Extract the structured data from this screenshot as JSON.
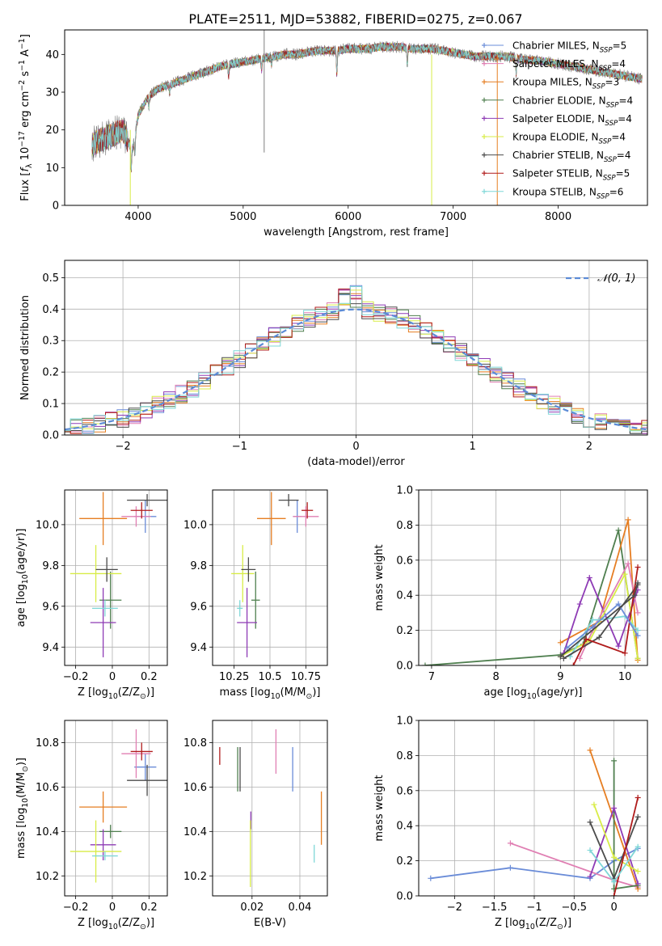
{
  "figure": {
    "title": "PLATE=2511, MJD=53882, FIBERID=0275, z=0.067",
    "colors": {
      "chabrier_miles": "#6a8cd8",
      "salpeter_miles": "#e07fb3",
      "kroupa_miles": "#e67e22",
      "chabrier_elodie": "#4f7f4f",
      "salpeter_elodie": "#8e3bb5",
      "kroupa_elodie": "#d8ec47",
      "chabrier_stelib": "#4b4b4b",
      "salpeter_stelib": "#b01c1c",
      "kroupa_stelib": "#7fd7d7",
      "data_grey": "#7f7f7f",
      "normal_curve": "#5b8bd6",
      "grid": "#b0b0b0"
    }
  },
  "chart_data": [
    {
      "id": "spectrum",
      "type": "line",
      "title": "PLATE=2511, MJD=53882, FIBERID=0275, z=0.067",
      "xlabel": "wavelength [Angstrom, rest frame]",
      "ylabel": "Flux [f_λ 10^-17 erg cm^-2 s^-1 A^-1]",
      "xlim": [
        3300,
        8850
      ],
      "ylim": [
        0,
        46.5
      ],
      "xticks": [
        4000,
        5000,
        6000,
        7000,
        8000
      ],
      "yticks": [
        0,
        10,
        20,
        30,
        40
      ],
      "grid": false,
      "legend_position": "right",
      "continuum": {
        "x": [
          3560,
          3620,
          3700,
          3780,
          3850,
          3900,
          3950,
          4000,
          4100,
          4200,
          4300,
          4400,
          4500,
          4600,
          4700,
          4800,
          4900,
          5000,
          5100,
          5200,
          5300,
          5400,
          5500,
          5600,
          5700,
          5800,
          5900,
          6000,
          6100,
          6200,
          6300,
          6400,
          6500,
          6600,
          6700,
          6800,
          6900,
          7000,
          7100,
          7200,
          7300,
          7400,
          7500,
          7600,
          7700,
          7800,
          7900,
          8000,
          8100,
          8200,
          8300,
          8400,
          8500,
          8600,
          8700,
          8800
        ],
        "y": [
          16,
          17,
          18,
          19,
          20,
          17,
          15,
          24,
          29,
          31,
          32,
          33,
          34,
          35,
          36,
          37,
          37.5,
          38,
          38.5,
          39,
          39.5,
          40,
          40,
          40.5,
          41,
          41,
          41,
          41.5,
          41.5,
          41.5,
          42,
          42,
          42,
          41.5,
          41.5,
          41.5,
          41,
          40.5,
          40,
          39.5,
          39.5,
          39.5,
          39.5,
          39,
          38.5,
          38.5,
          38,
          37.5,
          37,
          36.5,
          36,
          35.5,
          35,
          34.5,
          34,
          33.5
        ]
      },
      "series": [
        {
          "name": "Chabrier MILES, N_SSP=5",
          "marker": "plus"
        },
        {
          "name": "Salpeter MILES, N_SSP=4",
          "marker": "plus"
        },
        {
          "name": "Kroupa MILES, N_SSP=3",
          "marker": "plus"
        },
        {
          "name": "Chabrier ELODIE, N_SSP=4",
          "marker": "plus"
        },
        {
          "name": "Salpeter ELODIE, N_SSP=4",
          "marker": "plus"
        },
        {
          "name": "Kroupa ELODIE, N_SSP=4",
          "marker": "plus"
        },
        {
          "name": "Chabrier STELIB, N_SSP=4",
          "marker": "plus"
        },
        {
          "name": "Salpeter STELIB, N_SSP=5",
          "marker": "plus"
        },
        {
          "name": "Kroupa STELIB, N_SSP=6",
          "marker": "plus"
        }
      ]
    },
    {
      "id": "residuals",
      "type": "line",
      "xlabel": "(data-model)/error",
      "ylabel": "Normed distribution",
      "xlim": [
        -2.5,
        2.5
      ],
      "ylim": [
        0,
        0.555
      ],
      "xticks": [
        -2,
        -1,
        0,
        1,
        2
      ],
      "yticks": [
        0.0,
        0.1,
        0.2,
        0.3,
        0.4,
        0.5
      ],
      "grid": true,
      "legend_position": "top-right",
      "reference_curve": {
        "name": "𝒩(0, 1)",
        "mean": 0,
        "sigma": 1,
        "style": "dashed"
      },
      "bin_width": 0.1
    },
    {
      "id": "age_vs_Z",
      "type": "scatter",
      "xlabel": "Z [log10(Z/Z⊙)]",
      "ylabel": "age [log10(age/yr)]",
      "xlim": [
        -0.26,
        0.3
      ],
      "ylim": [
        9.31,
        10.17
      ],
      "xticks": [
        -0.2,
        0.0,
        0.2
      ],
      "yticks": [
        9.4,
        9.6,
        9.8,
        10.0
      ],
      "grid": true,
      "points": [
        {
          "series": 0,
          "x": 0.18,
          "y": 10.04,
          "xerr": 0.06,
          "yerr": 0.08
        },
        {
          "series": 1,
          "x": 0.13,
          "y": 10.04,
          "xerr": 0.08,
          "yerr": 0.05
        },
        {
          "series": 2,
          "x": -0.05,
          "y": 10.03,
          "xerr": 0.13,
          "yerr": 0.13
        },
        {
          "series": 3,
          "x": -0.01,
          "y": 9.63,
          "xerr": 0.06,
          "yerr": 0.14
        },
        {
          "series": 4,
          "x": -0.05,
          "y": 9.52,
          "xerr": 0.07,
          "yerr": 0.17
        },
        {
          "series": 5,
          "x": -0.09,
          "y": 9.76,
          "xerr": 0.14,
          "yerr": 0.14
        },
        {
          "series": 6,
          "x": 0.19,
          "y": 10.12,
          "xerr": 0.11,
          "yerr": 0.03
        },
        {
          "series": 7,
          "x": 0.16,
          "y": 10.07,
          "xerr": 0.06,
          "yerr": 0.04
        },
        {
          "series": 8,
          "x": -0.04,
          "y": 9.59,
          "xerr": 0.07,
          "yerr": 0.04
        },
        {
          "series": 6,
          "x": -0.03,
          "y": 9.78,
          "xerr": 0.06,
          "yerr": 0.06
        }
      ]
    },
    {
      "id": "age_vs_mass",
      "type": "scatter",
      "xlabel": "mass [log10(M/M⊙)]",
      "ylabel": "",
      "xlim": [
        10.1,
        10.9
      ],
      "ylim": [
        9.31,
        10.17
      ],
      "xticks": [
        10.25,
        10.5,
        10.75
      ],
      "yticks": [
        9.4,
        9.6,
        9.8,
        10.0
      ],
      "grid": true,
      "points": [
        {
          "series": 0,
          "x": 10.69,
          "y": 10.04,
          "xerr": 0.03,
          "yerr": 0.08
        },
        {
          "series": 1,
          "x": 10.75,
          "y": 10.04,
          "xerr": 0.09,
          "yerr": 0.05
        },
        {
          "series": 2,
          "x": 10.51,
          "y": 10.03,
          "xerr": 0.1,
          "yerr": 0.13
        },
        {
          "series": 3,
          "x": 10.4,
          "y": 9.63,
          "xerr": 0.03,
          "yerr": 0.14
        },
        {
          "series": 4,
          "x": 10.34,
          "y": 9.52,
          "xerr": 0.07,
          "yerr": 0.17
        },
        {
          "series": 5,
          "x": 10.31,
          "y": 9.76,
          "xerr": 0.08,
          "yerr": 0.14
        },
        {
          "series": 6,
          "x": 10.63,
          "y": 10.12,
          "xerr": 0.07,
          "yerr": 0.03
        },
        {
          "series": 7,
          "x": 10.76,
          "y": 10.07,
          "xerr": 0.04,
          "yerr": 0.04
        },
        {
          "series": 8,
          "x": 10.29,
          "y": 9.59,
          "xerr": 0.02,
          "yerr": 0.04
        },
        {
          "series": 6,
          "x": 10.35,
          "y": 9.78,
          "xerr": 0.05,
          "yerr": 0.06
        }
      ]
    },
    {
      "id": "weight_vs_age",
      "type": "line",
      "xlabel": "age [log10(age/yr)]",
      "ylabel": "mass weight",
      "xlim": [
        6.8,
        10.35
      ],
      "ylim": [
        0,
        1.0
      ],
      "xticks": [
        7,
        8,
        9,
        10
      ],
      "yticks": [
        0.0,
        0.2,
        0.4,
        0.6,
        0.8,
        1.0
      ],
      "grid": true,
      "series": [
        {
          "series": 3,
          "x": [
            6.9,
            9.0,
            9.35,
            9.9,
            10.2
          ],
          "y": [
            0.0,
            0.06,
            0.12,
            0.77,
            0.04
          ]
        },
        {
          "series": 2,
          "x": [
            9.0,
            9.6,
            10.05,
            10.2
          ],
          "y": [
            0.13,
            0.25,
            0.83,
            0.03
          ]
        },
        {
          "series": 4,
          "x": [
            9.05,
            9.3,
            9.45,
            9.9,
            10.2
          ],
          "y": [
            0.07,
            0.35,
            0.5,
            0.11,
            0.43
          ]
        },
        {
          "series": 1,
          "x": [
            9.3,
            9.5,
            10.05,
            10.2
          ],
          "y": [
            0.04,
            0.2,
            0.58,
            0.3
          ]
        },
        {
          "series": 5,
          "x": [
            9.0,
            9.45,
            10.0,
            10.2
          ],
          "y": [
            0.05,
            0.14,
            0.52,
            0.04
          ]
        },
        {
          "series": 8,
          "x": [
            9.15,
            9.5,
            9.6,
            10.0,
            10.2
          ],
          "y": [
            0.05,
            0.26,
            0.26,
            0.28,
            0.2
          ]
        },
        {
          "series": 6,
          "x": [
            9.05,
            9.6,
            10.2
          ],
          "y": [
            0.04,
            0.16,
            0.46
          ]
        },
        {
          "series": 7,
          "x": [
            9.2,
            9.4,
            10.0,
            10.2
          ],
          "y": [
            0.0,
            0.15,
            0.07,
            0.56
          ]
        },
        {
          "series": 0,
          "x": [
            9.1,
            9.5,
            9.9,
            10.2
          ],
          "y": [
            0.1,
            0.22,
            0.35,
            0.17
          ]
        },
        {
          "series": 6,
          "x": [
            9.0,
            10.15,
            10.2
          ],
          "y": [
            0.05,
            0.4,
            0.47
          ]
        }
      ]
    },
    {
      "id": "mass_vs_Z",
      "type": "scatter",
      "xlabel": "Z [log10(Z/Z⊙)]",
      "ylabel": "mass [log10(M/M⊙)]",
      "xlim": [
        -0.26,
        0.3
      ],
      "ylim": [
        10.11,
        10.9
      ],
      "xticks": [
        -0.2,
        0.0,
        0.2
      ],
      "yticks": [
        10.2,
        10.4,
        10.6,
        10.8
      ],
      "grid": true,
      "points": [
        {
          "series": 0,
          "x": 0.18,
          "y": 10.69,
          "xerr": 0.06,
          "yerr": 0.06
        },
        {
          "series": 1,
          "x": 0.13,
          "y": 10.75,
          "xerr": 0.08,
          "yerr": 0.11
        },
        {
          "series": 2,
          "x": -0.05,
          "y": 10.51,
          "xerr": 0.13,
          "yerr": 0.07
        },
        {
          "series": 3,
          "x": -0.01,
          "y": 10.4,
          "xerr": 0.06,
          "yerr": 0.03
        },
        {
          "series": 4,
          "x": -0.05,
          "y": 10.34,
          "xerr": 0.07,
          "yerr": 0.07
        },
        {
          "series": 5,
          "x": -0.09,
          "y": 10.31,
          "xerr": 0.14,
          "yerr": 0.14
        },
        {
          "series": 6,
          "x": 0.19,
          "y": 10.63,
          "xerr": 0.11,
          "yerr": 0.07
        },
        {
          "series": 7,
          "x": 0.16,
          "y": 10.76,
          "xerr": 0.06,
          "yerr": 0.04
        },
        {
          "series": 8,
          "x": -0.04,
          "y": 10.29,
          "xerr": 0.07,
          "yerr": 0.02
        }
      ]
    },
    {
      "id": "mass_vs_ebv",
      "type": "scatter",
      "xlabel": "E(B-V)",
      "ylabel": "",
      "xlim": [
        0.0035,
        0.0515
      ],
      "ylim": [
        10.11,
        10.9
      ],
      "xticks": [
        0.02,
        0.04
      ],
      "yticks": [
        10.2,
        10.4,
        10.6,
        10.8
      ],
      "grid": true,
      "points": [
        {
          "series": 0,
          "x": 0.037,
          "y": 10.68,
          "yerr": 0.1
        },
        {
          "series": 1,
          "x": 0.03,
          "y": 10.76,
          "yerr": 0.1
        },
        {
          "series": 2,
          "x": 0.049,
          "y": 10.46,
          "yerr": 0.12
        },
        {
          "series": 3,
          "x": 0.014,
          "y": 10.68,
          "yerr": 0.1
        },
        {
          "series": 4,
          "x": 0.0195,
          "y": 10.45,
          "yerr": 0.04
        },
        {
          "series": 5,
          "x": 0.0193,
          "y": 10.3,
          "yerr": 0.15
        },
        {
          "series": 6,
          "x": 0.015,
          "y": 10.68,
          "yerr": 0.1
        },
        {
          "series": 7,
          "x": 0.0065,
          "y": 10.74,
          "yerr": 0.04
        },
        {
          "series": 8,
          "x": 0.046,
          "y": 10.3,
          "yerr": 0.04
        }
      ]
    },
    {
      "id": "weight_vs_Z",
      "type": "line",
      "xlabel": "Z [log10(Z/Z⊙)]",
      "ylabel": "mass weight",
      "xlim": [
        -2.45,
        0.42
      ],
      "ylim": [
        0,
        1.0
      ],
      "xticks": [
        -2.0,
        -1.5,
        -1.0,
        -0.5,
        0.0
      ],
      "yticks": [
        0.0,
        0.2,
        0.4,
        0.6,
        0.8,
        1.0
      ],
      "grid": true,
      "series": [
        {
          "series": 0,
          "x": [
            -2.3,
            -1.3,
            -0.3,
            0.0,
            0.3
          ],
          "y": [
            0.1,
            0.16,
            0.1,
            0.2,
            0.27
          ]
        },
        {
          "series": 1,
          "x": [
            -1.3,
            0.0,
            0.3
          ],
          "y": [
            0.3,
            0.09,
            0.05
          ]
        },
        {
          "series": 2,
          "x": [
            -0.3,
            0.3
          ],
          "y": [
            0.83,
            0.04
          ]
        },
        {
          "series": 3,
          "x": [
            0.0,
            0.0,
            0.3
          ],
          "y": [
            0.77,
            0.04,
            0.06
          ]
        },
        {
          "series": 4,
          "x": [
            -0.3,
            0.0,
            0.3
          ],
          "y": [
            0.11,
            0.5,
            0.07
          ]
        },
        {
          "series": 5,
          "x": [
            -0.25,
            0.0,
            0.3
          ],
          "y": [
            0.52,
            0.22,
            0.14
          ]
        },
        {
          "series": 6,
          "x": [
            -0.3,
            0.0,
            0.3
          ],
          "y": [
            0.42,
            0.1,
            0.45
          ]
        },
        {
          "series": 7,
          "x": [
            0.0,
            0.3
          ],
          "y": [
            0.0,
            0.56
          ]
        },
        {
          "series": 8,
          "x": [
            -0.3,
            0.0,
            0.3
          ],
          "y": [
            0.26,
            0.08,
            0.28
          ]
        }
      ]
    }
  ]
}
